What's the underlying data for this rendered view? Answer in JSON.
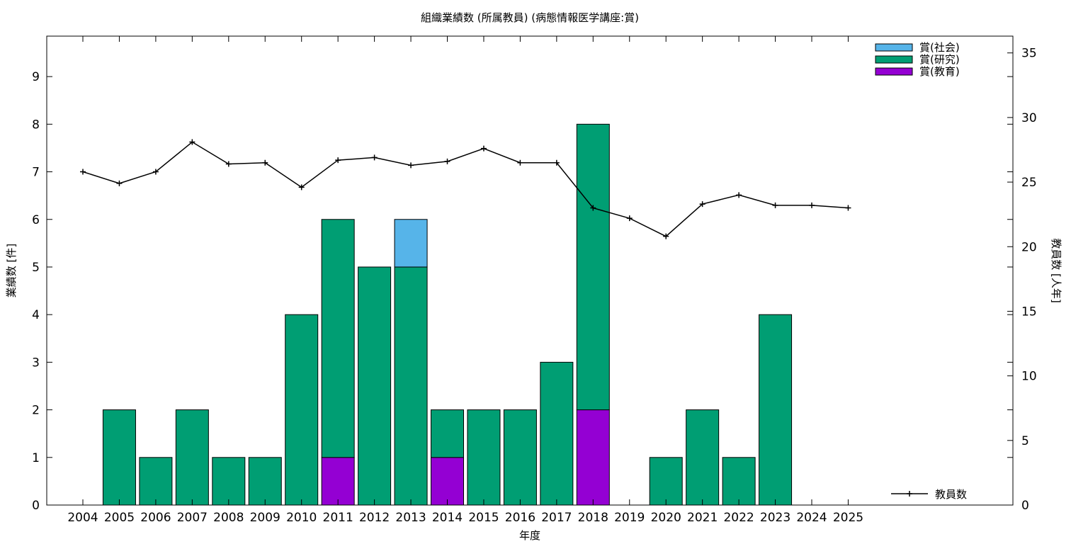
{
  "chart_data": {
    "type": "bar",
    "title": "組織業績数 (所属教員) (病態情報医学講座:賞)",
    "xlabel": "年度",
    "ylabel": "業績数 [件]",
    "y2label": "教員数 [人年]",
    "categories": [
      "2004",
      "2005",
      "2006",
      "2007",
      "2008",
      "2009",
      "2010",
      "2011",
      "2012",
      "2013",
      "2014",
      "2015",
      "2016",
      "2017",
      "2018",
      "2019",
      "2020",
      "2021",
      "2022",
      "2023",
      "2024",
      "2025"
    ],
    "stacked": true,
    "ylim": [
      0,
      9.85
    ],
    "yticks": [
      0,
      1,
      2,
      3,
      4,
      5,
      6,
      7,
      8,
      9
    ],
    "y2lim": [
      0,
      36.3
    ],
    "y2ticks": [
      0,
      5,
      10,
      15,
      20,
      25,
      30,
      35
    ],
    "series": [
      {
        "name": "賞(教育)",
        "color": "#9400d3",
        "values": [
          0,
          0,
          0,
          0,
          0,
          0,
          0,
          1,
          0,
          0,
          1,
          0,
          0,
          0,
          2,
          0,
          0,
          0,
          0,
          0,
          0,
          0
        ]
      },
      {
        "name": "賞(研究)",
        "color": "#009e73",
        "values": [
          0,
          2,
          1,
          2,
          1,
          1,
          4,
          5,
          5,
          5,
          1,
          2,
          2,
          3,
          6,
          0,
          1,
          2,
          1,
          4,
          0,
          0
        ]
      },
      {
        "name": "賞(社会)",
        "color": "#56b4e9",
        "values": [
          0,
          0,
          0,
          0,
          0,
          0,
          0,
          0,
          0,
          1,
          0,
          0,
          0,
          0,
          0,
          0,
          0,
          0,
          0,
          0,
          0,
          0
        ]
      }
    ],
    "line_series": {
      "name": "教員数",
      "axis": "right",
      "color": "#000000",
      "values": [
        25.8,
        24.9,
        25.8,
        28.1,
        26.4,
        26.5,
        24.6,
        26.7,
        26.9,
        26.3,
        26.6,
        27.6,
        26.5,
        26.5,
        23.0,
        22.2,
        20.8,
        23.3,
        24.0,
        23.2,
        23.2,
        23.0
      ]
    },
    "grid": false,
    "legend_position": "top-right",
    "line_legend_position": "bottom-right"
  }
}
